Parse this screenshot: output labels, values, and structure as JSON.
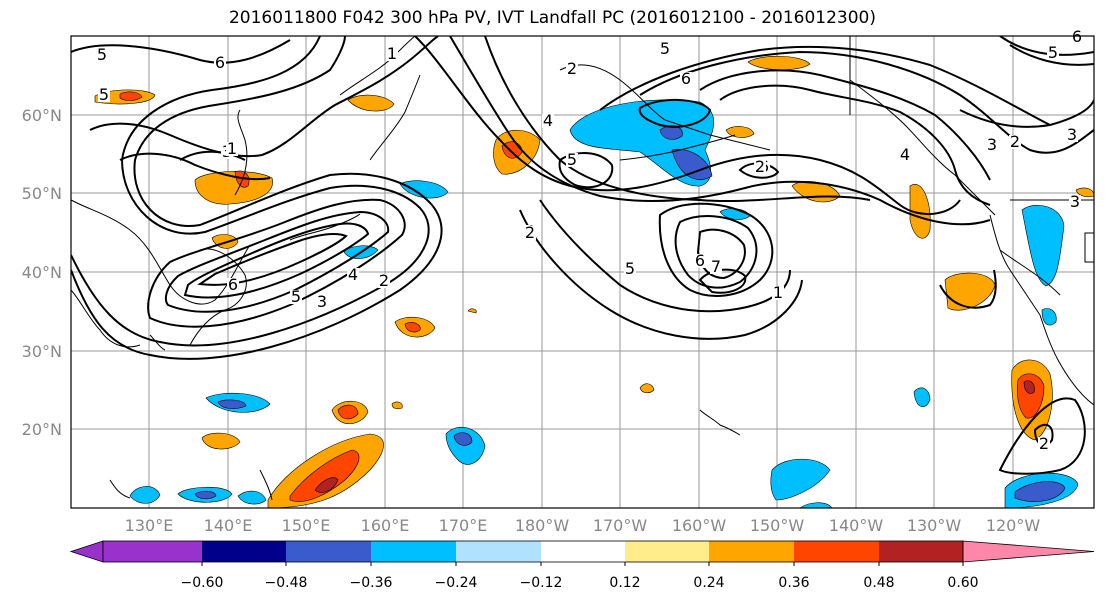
{
  "title": "2016011800 F042 300 hPa PV, IVT Landfall PC (2016012100 - 2016012300)",
  "lat_labels": [
    "60°N",
    "50°N",
    "40°N",
    "30°N",
    "20°N"
  ],
  "lon_labels": [
    "130°E",
    "140°E",
    "150°E",
    "160°E",
    "170°E",
    "180°W",
    "170°W",
    "160°W",
    "150°W",
    "140°W",
    "130°W",
    "120°W"
  ],
  "colorbar": {
    "colors": [
      "#9932CC",
      "#00008B",
      "#3A5BCB",
      "#00BFFF",
      "#B0E2FF",
      "#FFFFFF",
      "#FFEC8B",
      "#FFA500",
      "#FF4500",
      "#B22222",
      "#FF88AA"
    ],
    "tick_labels": [
      "-0.60",
      "-0.48",
      "-0.36",
      "-0.24",
      "-0.12",
      "0.12",
      "0.24",
      "0.36",
      "0.48",
      "0.60"
    ]
  },
  "contour_labels": [
    "5",
    "6",
    "5",
    "1",
    "5",
    "2",
    "3",
    "4",
    "5",
    "6",
    "2",
    "3",
    "4",
    "5",
    "4",
    "2",
    "6",
    "6",
    "7",
    "5",
    "1",
    "6",
    "4",
    "3",
    "2",
    "5",
    "6",
    "3",
    "1",
    "2",
    "3",
    "2"
  ]
}
